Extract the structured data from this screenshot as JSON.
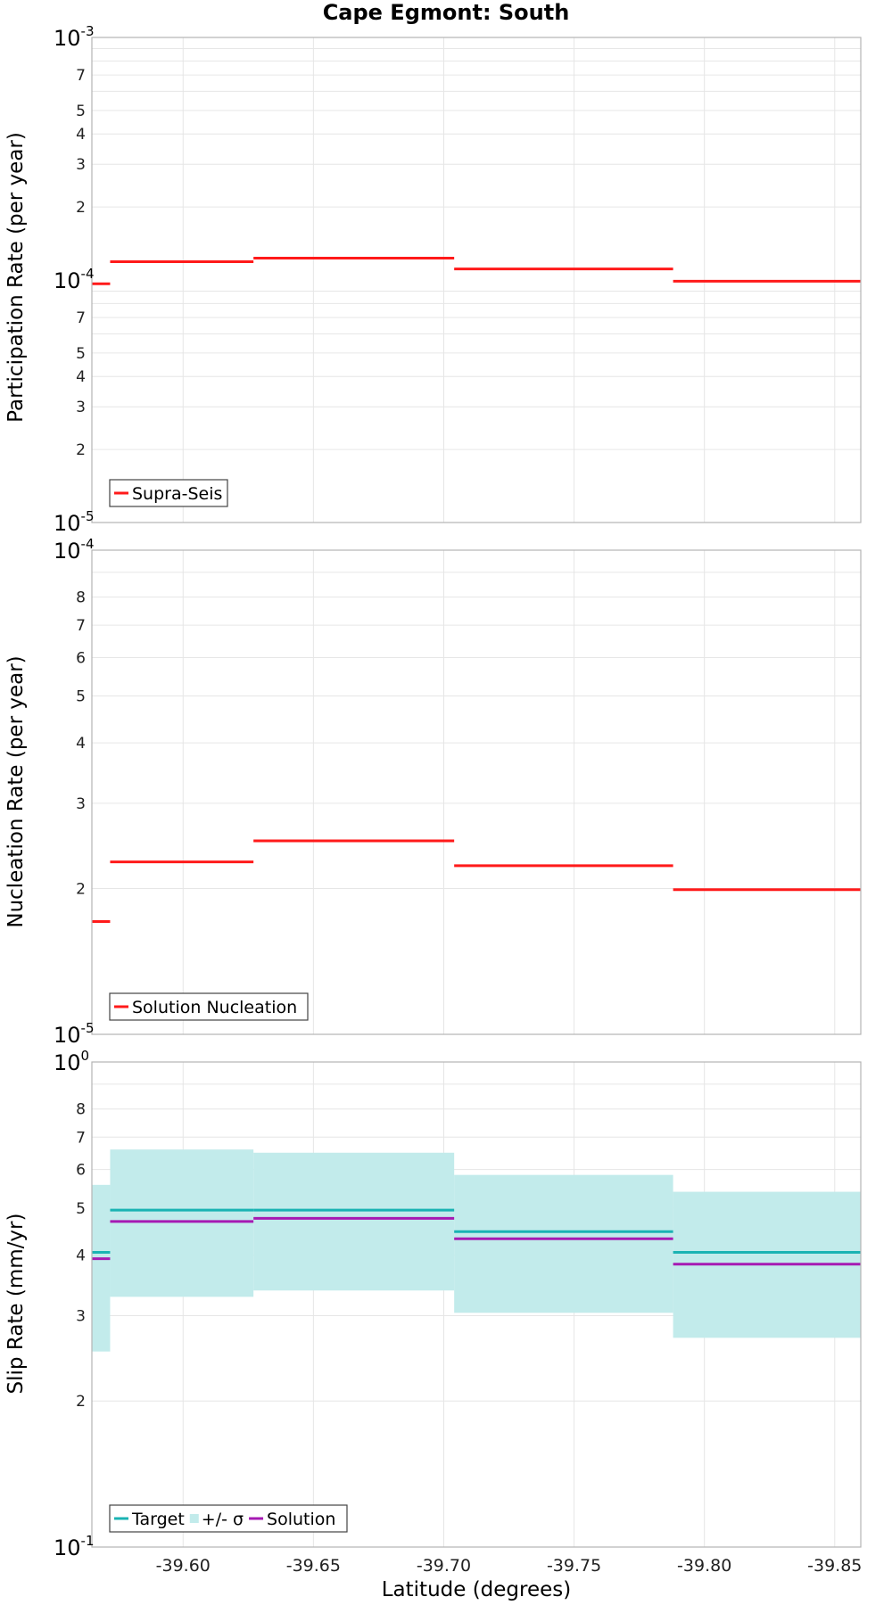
{
  "chart_data": {
    "title": "Cape Egmont: South",
    "xlabel": "Latitude (degrees)",
    "xlim": [
      -39.565,
      -39.86
    ],
    "x_ticks": [
      -39.6,
      -39.65,
      -39.7,
      -39.75,
      -39.8,
      -39.85
    ],
    "x_tick_labels": [
      "-39.60",
      "-39.65",
      "-39.70",
      "-39.75",
      "-39.80",
      "-39.85"
    ],
    "segment_bounds": [
      -39.565,
      -39.572,
      -39.627,
      -39.704,
      -39.788,
      -39.86
    ],
    "colors": {
      "supra": "#ff1a1a",
      "target": "#1ab3b3",
      "sigma": "#c2ebeb",
      "solution": "#a61ab3"
    },
    "panels": [
      {
        "type": "step",
        "ylabel": "Participation Rate (per year)",
        "yscale": "log",
        "ylim": [
          1e-05,
          0.001
        ],
        "decade_labels": [
          {
            "value": 0.001,
            "base": "10",
            "exp": "-3"
          },
          {
            "value": 0.0001,
            "base": "10",
            "exp": "-4"
          },
          {
            "value": 1e-05,
            "base": "10",
            "exp": "-5"
          }
        ],
        "minor_ticks": [
          {
            "value": 0.0007,
            "label": "7"
          },
          {
            "value": 0.0005,
            "label": "5"
          },
          {
            "value": 0.0004,
            "label": "4"
          },
          {
            "value": 0.0003,
            "label": "3"
          },
          {
            "value": 0.0002,
            "label": "2"
          },
          {
            "value": 7e-05,
            "label": "7"
          },
          {
            "value": 5e-05,
            "label": "5"
          },
          {
            "value": 4e-05,
            "label": "4"
          },
          {
            "value": 3e-05,
            "label": "3"
          },
          {
            "value": 2e-05,
            "label": "2"
          }
        ],
        "gridlines": [
          0.0009,
          0.0008,
          0.0007,
          0.0006,
          0.0005,
          0.0004,
          0.0003,
          0.0002,
          9e-05,
          8e-05,
          7e-05,
          6e-05,
          5e-05,
          4e-05,
          3e-05,
          2e-05
        ],
        "series": [
          {
            "name": "Supra-Seis",
            "color": "#ff1a1a",
            "values": [
              9.65e-05,
              0.000119,
              0.000123,
              0.000111,
              9.88e-05
            ]
          }
        ],
        "legend": [
          "Supra-Seis"
        ]
      },
      {
        "type": "step",
        "ylabel": "Nucleation Rate (per year)",
        "yscale": "log",
        "ylim": [
          1e-05,
          0.0001
        ],
        "decade_labels": [
          {
            "value": 0.0001,
            "base": "10",
            "exp": "-4"
          },
          {
            "value": 1e-05,
            "base": "10",
            "exp": "-5"
          }
        ],
        "minor_ticks": [
          {
            "value": 8e-05,
            "label": "8"
          },
          {
            "value": 7e-05,
            "label": "7"
          },
          {
            "value": 6e-05,
            "label": "6"
          },
          {
            "value": 5e-05,
            "label": "5"
          },
          {
            "value": 4e-05,
            "label": "4"
          },
          {
            "value": 3e-05,
            "label": "3"
          },
          {
            "value": 2e-05,
            "label": "2"
          }
        ],
        "gridlines": [
          9e-05,
          8e-05,
          7e-05,
          6e-05,
          5e-05,
          4e-05,
          3e-05,
          2e-05
        ],
        "series": [
          {
            "name": "Solution Nucleation",
            "color": "#ff1a1a",
            "values": [
              1.71e-05,
              2.27e-05,
              2.51e-05,
              2.23e-05,
              1.99e-05
            ]
          }
        ],
        "legend": [
          "Solution Nucleation"
        ]
      },
      {
        "type": "step",
        "ylabel": "Slip Rate (mm/yr)",
        "yscale": "log",
        "ylim": [
          0.1,
          1
        ],
        "decade_labels": [
          {
            "value": 1,
            "base": "10",
            "exp": "0"
          },
          {
            "value": 0.1,
            "base": "10",
            "exp": "-1"
          }
        ],
        "minor_ticks": [
          {
            "value": 0.8,
            "label": "8"
          },
          {
            "value": 0.7,
            "label": "7"
          },
          {
            "value": 0.6,
            "label": "6"
          },
          {
            "value": 0.5,
            "label": "5"
          },
          {
            "value": 0.4,
            "label": "4"
          },
          {
            "value": 0.3,
            "label": "3"
          },
          {
            "value": 0.2,
            "label": "2"
          }
        ],
        "gridlines": [
          0.9,
          0.8,
          0.7,
          0.6,
          0.5,
          0.4,
          0.3,
          0.2
        ],
        "band": {
          "name": "+/- σ",
          "color": "#c2ebeb",
          "lower": [
            0.253,
            0.328,
            0.338,
            0.304,
            0.27
          ],
          "upper": [
            0.558,
            0.66,
            0.65,
            0.585,
            0.54
          ]
        },
        "series": [
          {
            "name": "Target",
            "color": "#1ab3b3",
            "values": [
              0.405,
              0.495,
              0.495,
              0.447,
              0.405
            ]
          },
          {
            "name": "Solution",
            "color": "#a61ab3",
            "values": [
              0.393,
              0.469,
              0.476,
              0.432,
              0.383
            ]
          }
        ],
        "legend": [
          "Target",
          "+/- σ",
          "Solution"
        ]
      }
    ]
  }
}
